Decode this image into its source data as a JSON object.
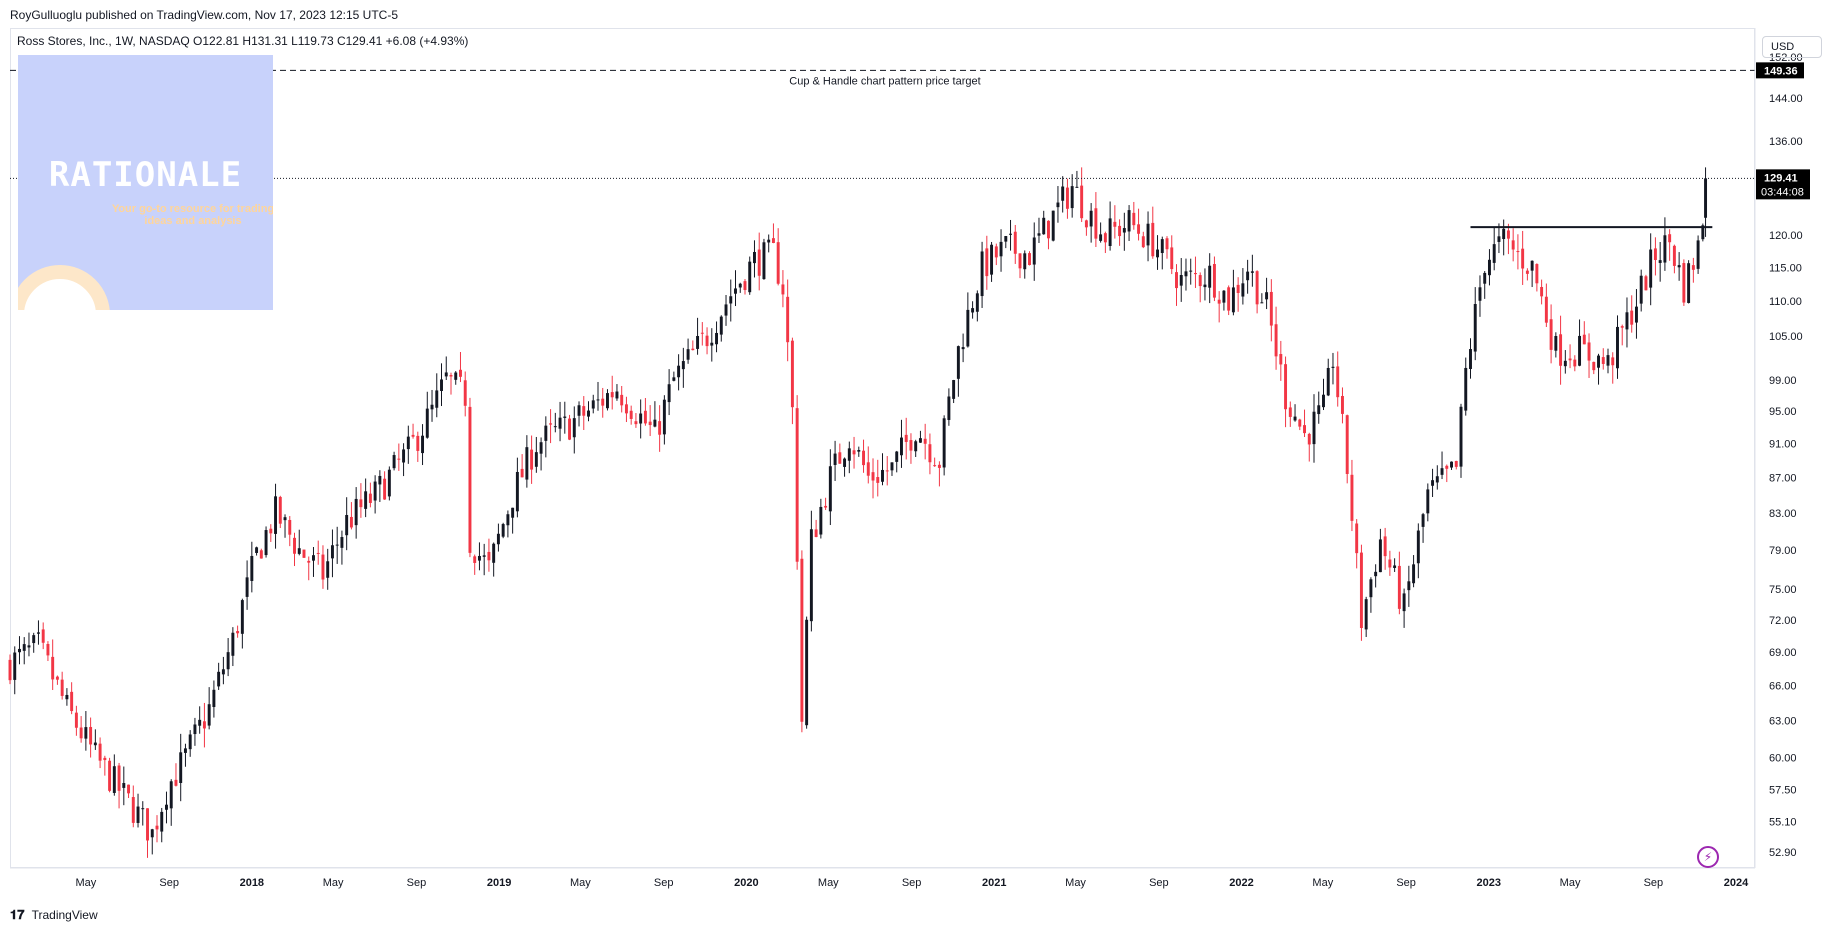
{
  "header": {
    "published": "RoyGulluoglu published on TradingView.com, Nov 17, 2023 12:15 UTC-5"
  },
  "legend": {
    "text": "Ross Stores, Inc., 1W, NASDAQ  O122.81  H131.31  L119.73  C129.41  +6.08 (+4.93%)"
  },
  "currency": "USD",
  "watermark": {
    "title": "RATIONALE",
    "subtitle": "Your go-to resource for trading ideas and analysis"
  },
  "annotations": {
    "target_label": "Cup & Handle chart pattern price target",
    "target_price": "149.36",
    "last_price": "129.41",
    "countdown": "03:44:08"
  },
  "footer": {
    "brand": "TradingView"
  },
  "colors": {
    "up": "#131722",
    "down": "#f23645",
    "grid": "#e0e3eb",
    "label_bg": "#000000"
  },
  "chart_data": {
    "type": "candlestick",
    "symbol": "Ross Stores, Inc.",
    "interval": "1W",
    "exchange": "NASDAQ",
    "last_bar": {
      "open": 122.81,
      "high": 131.31,
      "low": 119.73,
      "close": 129.41,
      "change": 6.08,
      "change_pct": 4.93
    },
    "y_scale": "log",
    "ylim": [
      51.8,
      158
    ],
    "y_ticks": [
      "152.00",
      "144.00",
      "136.00",
      "120.00",
      "115.00",
      "110.00",
      "105.00",
      "99.00",
      "95.00",
      "91.00",
      "87.00",
      "83.00",
      "79.00",
      "75.00",
      "72.00",
      "69.00",
      "66.00",
      "63.00",
      "60.00",
      "57.50",
      "55.10",
      "52.90"
    ],
    "x_ticks": [
      "May",
      "Sep",
      "2018",
      "May",
      "Sep",
      "2019",
      "May",
      "Sep",
      "2020",
      "May",
      "Sep",
      "2021",
      "May",
      "Sep",
      "2022",
      "May",
      "Sep",
      "2023",
      "May",
      "Sep",
      "2024"
    ],
    "x_tick_dates": [
      "2017-05-01",
      "2017-09-01",
      "2018-01-01",
      "2018-05-01",
      "2018-09-01",
      "2019-01-01",
      "2019-05-01",
      "2019-09-01",
      "2020-01-01",
      "2020-05-01",
      "2020-09-01",
      "2021-01-01",
      "2021-05-01",
      "2021-09-01",
      "2022-01-01",
      "2022-05-01",
      "2022-09-01",
      "2023-01-01",
      "2023-05-01",
      "2023-09-01",
      "2024-01-01"
    ],
    "x_range": [
      "2017-01-09",
      "2024-01-29"
    ],
    "path": [
      [
        "2017-01-09",
        68
      ],
      [
        "2017-02-20",
        69.5
      ],
      [
        "2017-04-03",
        64
      ],
      [
        "2017-05-15",
        60
      ],
      [
        "2017-06-26",
        57
      ],
      [
        "2017-08-07",
        54.2
      ],
      [
        "2017-08-28",
        57.5
      ],
      [
        "2017-09-25",
        60
      ],
      [
        "2017-10-30",
        64
      ],
      [
        "2017-12-04",
        70
      ],
      [
        "2018-01-08",
        78.5
      ],
      [
        "2018-02-05",
        83
      ],
      [
        "2018-03-12",
        79
      ],
      [
        "2018-04-16",
        76.5
      ],
      [
        "2018-05-21",
        82
      ],
      [
        "2018-07-02",
        85
      ],
      [
        "2018-08-20",
        90
      ],
      [
        "2018-09-24",
        95
      ],
      [
        "2018-10-15",
        99
      ],
      [
        "2018-11-12",
        97
      ],
      [
        "2018-11-19",
        80
      ],
      [
        "2018-12-17",
        77
      ],
      [
        "2019-01-21",
        85
      ],
      [
        "2019-02-25",
        91
      ],
      [
        "2019-04-08",
        93
      ],
      [
        "2019-05-13",
        95
      ],
      [
        "2019-06-24",
        98
      ],
      [
        "2019-07-22",
        95
      ],
      [
        "2019-08-19",
        92
      ],
      [
        "2019-09-16",
        99
      ],
      [
        "2019-11-04",
        105
      ],
      [
        "2019-12-09",
        111
      ],
      [
        "2020-01-13",
        116
      ],
      [
        "2020-02-10",
        117
      ],
      [
        "2020-02-24",
        112
      ],
      [
        "2020-03-09",
        95
      ],
      [
        "2020-03-23",
        63
      ],
      [
        "2020-04-06",
        80
      ],
      [
        "2020-05-04",
        87
      ],
      [
        "2020-06-01",
        92
      ],
      [
        "2020-06-29",
        87
      ],
      [
        "2020-08-03",
        88
      ],
      [
        "2020-09-07",
        93
      ],
      [
        "2020-10-12",
        89
      ],
      [
        "2020-11-09",
        103
      ],
      [
        "2020-12-14",
        115
      ],
      [
        "2021-01-18",
        118
      ],
      [
        "2021-02-22",
        117
      ],
      [
        "2021-03-29",
        123
      ],
      [
        "2021-04-26",
        128
      ],
      [
        "2021-05-17",
        124
      ],
      [
        "2021-06-14",
        120
      ],
      [
        "2021-07-19",
        122
      ],
      [
        "2021-08-23",
        119
      ],
      [
        "2021-10-04",
        113
      ],
      [
        "2021-11-15",
        114
      ],
      [
        "2021-12-13",
        110
      ],
      [
        "2022-01-10",
        115
      ],
      [
        "2022-02-07",
        109
      ],
      [
        "2022-03-07",
        97
      ],
      [
        "2022-04-04",
        92
      ],
      [
        "2022-05-02",
        95
      ],
      [
        "2022-05-16",
        102
      ],
      [
        "2022-06-06",
        88
      ],
      [
        "2022-06-27",
        72
      ],
      [
        "2022-07-25",
        80
      ],
      [
        "2022-08-29",
        73
      ],
      [
        "2022-10-03",
        85
      ],
      [
        "2022-11-14",
        88
      ],
      [
        "2022-11-28",
        100
      ],
      [
        "2022-12-26",
        116
      ],
      [
        "2023-01-23",
        119
      ],
      [
        "2023-03-06",
        115
      ],
      [
        "2023-04-10",
        103
      ],
      [
        "2023-05-15",
        103
      ],
      [
        "2023-06-26",
        101
      ],
      [
        "2023-08-07",
        110
      ],
      [
        "2023-09-04",
        117
      ],
      [
        "2023-09-25",
        119
      ],
      [
        "2023-10-16",
        112
      ],
      [
        "2023-11-06",
        118
      ],
      [
        "2023-11-13",
        123
      ],
      [
        "2023-11-17",
        129.41
      ]
    ],
    "lines": [
      {
        "kind": "horizontal",
        "price": 121.3,
        "from": "2022-12-05",
        "to": "2023-11-27",
        "style": "solid"
      },
      {
        "kind": "horizontal",
        "price": 149.36,
        "style": "dashed",
        "label": "Cup & Handle chart pattern price target"
      },
      {
        "kind": "horizontal",
        "price": 129.41,
        "style": "dotted",
        "label": "last price"
      }
    ]
  }
}
